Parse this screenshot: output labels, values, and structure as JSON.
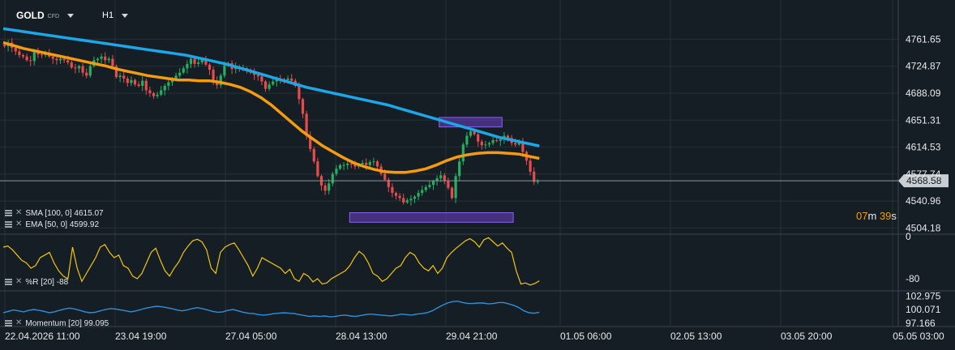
{
  "header": {
    "symbol": "GOLD",
    "symbol_sub": "CFD",
    "timeframe": "H1"
  },
  "indicators": {
    "sma": {
      "label": "SMA [100, 0] 4615.07",
      "color": "#1ea7e8"
    },
    "ema": {
      "label": "EMA [50, 0] 4599.92",
      "color": "#f39c12"
    },
    "williams_r": {
      "label": "%R [20] -88",
      "color": "#f1c40f"
    },
    "momentum": {
      "label": "Momentum [20] 99.095",
      "color": "#2f8fd8"
    }
  },
  "price_tag": "4568.58",
  "countdown": {
    "min": "07",
    "min_unit": "m",
    "sec": "39",
    "sec_unit": "s"
  },
  "chart_data": [
    {
      "type": "candlestick",
      "y_ticks": [
        "4761.65",
        "4724.87",
        "4688.09",
        "4651.31",
        "4614.53",
        "4577.74",
        "4540.96",
        "4504.18"
      ],
      "ylim": [
        4498,
        4782
      ],
      "x_ticks": [
        "22.04.2026 11:00",
        "23.04 19:00",
        "27.04 05:00",
        "28.04 13:00",
        "29.04 21:00",
        "01.05 06:00",
        "02.05 13:00",
        "03.05 20:00",
        "05.05 03:00"
      ],
      "last_price": 4568.58,
      "bar_count": 144,
      "closes": [
        4752,
        4757,
        4750,
        4745,
        4740,
        4738,
        4733,
        4732,
        4745,
        4741,
        4740,
        4742,
        4738,
        4735,
        4733,
        4735,
        4733,
        4730,
        4723,
        4722,
        4725,
        4716,
        4712,
        4725,
        4733,
        4735,
        4738,
        4733,
        4735,
        4725,
        4710,
        4712,
        4708,
        4702,
        4706,
        4700,
        4698,
        4705,
        4692,
        4688,
        4684,
        4686,
        4692,
        4698,
        4703,
        4708,
        4712,
        4716,
        4722,
        4728,
        4735,
        4728,
        4730,
        4734,
        4727,
        4720,
        4705,
        4699,
        4712,
        4726,
        4729,
        4721,
        4724,
        4722,
        4722,
        4718,
        4716,
        4713,
        4711,
        4704,
        4694,
        4700,
        4704,
        4708,
        4707,
        4706,
        4708,
        4705,
        4698,
        4680,
        4660,
        4630,
        4612,
        4595,
        4575,
        4562,
        4555,
        4565,
        4578,
        4585,
        4590,
        4590,
        4592,
        4591,
        4588,
        4591,
        4593,
        4590,
        4594,
        4595,
        4588,
        4578,
        4570,
        4560,
        4552,
        4548,
        4545,
        4539,
        4542,
        4544,
        4547,
        4552,
        4556,
        4560,
        4563,
        4568,
        4572,
        4576,
        4568,
        4559,
        4545,
        4575,
        4595,
        4618,
        4630,
        4636,
        4632,
        4622,
        4617,
        4618,
        4620,
        4624,
        4623,
        4625,
        4630,
        4627,
        4620,
        4618,
        4622,
        4608,
        4596,
        4581,
        4567,
        4568
      ],
      "sma": [
        4776,
        4774,
        4772,
        4770,
        4768,
        4766,
        4764,
        4762,
        4760,
        4758,
        4756,
        4754,
        4752,
        4750,
        4748,
        4746,
        4744,
        4742,
        4740,
        4737,
        4734,
        4731,
        4728,
        4724,
        4720,
        4716,
        4712,
        4708,
        4704,
        4700,
        4696,
        4693,
        4690,
        4687,
        4684,
        4681,
        4678,
        4675,
        4672,
        4668,
        4664,
        4660,
        4656,
        4652,
        4648,
        4644,
        4640,
        4636,
        4632,
        4628,
        4625,
        4622,
        4619,
        4616
      ],
      "ema": [
        4757,
        4753,
        4749,
        4746,
        4743,
        4740,
        4737,
        4734,
        4731,
        4728,
        4725,
        4721,
        4718,
        4715,
        4712,
        4710,
        4708,
        4706,
        4706,
        4705,
        4705,
        4703,
        4700,
        4696,
        4690,
        4682,
        4672,
        4660,
        4648,
        4636,
        4626,
        4616,
        4608,
        4600,
        4593,
        4588,
        4584,
        4581,
        4580,
        4580,
        4582,
        4585,
        4590,
        4596,
        4601,
        4604,
        4606,
        4607,
        4607,
        4606,
        4605,
        4602,
        4599
      ],
      "highlight_boxes": [
        {
          "from_bar": 117,
          "to_bar": 133,
          "y_top": 4655,
          "y_bottom": 4642,
          "color": "#6c3fc7"
        },
        {
          "from_bar": 93,
          "to_bar": 136,
          "y_top": 4525,
          "y_bottom": 4512,
          "color": "#6c3fc7"
        }
      ]
    },
    {
      "type": "line",
      "name": "%R [20]",
      "y_ticks": [
        "0",
        "-80"
      ],
      "ylim": [
        -100,
        0
      ],
      "values": [
        -20,
        -18,
        -25,
        -35,
        -45,
        -50,
        -60,
        -55,
        -40,
        -35,
        -30,
        -50,
        -65,
        -75,
        -80,
        -20,
        -60,
        -85,
        -70,
        -55,
        -40,
        -20,
        -15,
        -30,
        -40,
        -35,
        -55,
        -60,
        -75,
        -80,
        -70,
        -50,
        -30,
        -22,
        -45,
        -65,
        -75,
        -60,
        -48,
        -30,
        -18,
        -8,
        -5,
        -10,
        -25,
        -60,
        -70,
        -30,
        -20,
        -15,
        -12,
        -25,
        -40,
        -55,
        -75,
        -60,
        -40,
        -45,
        -50,
        -55,
        -60,
        -70,
        -62,
        -80,
        -85,
        -70,
        -75,
        -86,
        -80,
        -90,
        -88,
        -80,
        -75,
        -70,
        -65,
        -55,
        -40,
        -28,
        -35,
        -50,
        -70,
        -75,
        -85,
        -80,
        -70,
        -60,
        -55,
        -40,
        -30,
        -35,
        -50,
        -60,
        -65,
        -55,
        -70,
        -60,
        -40,
        -30,
        -22,
        -15,
        -8,
        -4,
        -10,
        -20,
        -6,
        -2,
        -10,
        -18,
        -12,
        -22,
        -30,
        -65,
        -90,
        -88,
        -92,
        -89,
        -84
      ]
    },
    {
      "type": "line",
      "name": "Momentum [20]",
      "y_ticks": [
        "102.975",
        "100.071",
        "97.166"
      ],
      "ylim": [
        96.6,
        103.6
      ],
      "values": [
        99.4,
        99.7,
        100.0,
        99.8,
        99.6,
        99.9,
        100.1,
        99.9,
        99.7,
        99.4,
        99.6,
        99.9,
        100.2,
        100.4,
        100.2,
        99.9,
        99.6,
        99.4,
        99.5,
        99.8,
        100.1,
        100.3,
        100.2,
        100.0,
        99.8,
        99.6,
        99.8,
        100.1,
        100.4,
        100.6,
        100.8,
        100.7,
        100.5,
        100.3,
        100.0,
        99.8,
        100.0,
        100.3,
        100.5,
        100.3,
        100.0,
        99.7,
        99.5,
        99.6,
        99.9,
        100.1,
        99.8,
        99.5,
        99.3,
        99.2,
        99.0,
        98.9,
        99.0,
        99.2,
        99.3,
        99.4,
        99.3,
        99.2,
        99.0,
        98.8,
        98.6,
        98.7,
        98.6,
        98.7,
        98.5,
        98.6,
        98.8,
        98.9,
        98.7,
        98.6,
        98.8,
        99.0,
        99.1,
        99.0,
        98.9,
        98.8,
        98.7,
        98.9,
        99.1,
        99.0,
        98.9,
        99.1,
        99.2,
        99.4,
        99.8,
        100.4,
        101.0,
        101.5,
        101.8,
        101.9,
        101.6,
        101.4,
        101.4,
        101.5,
        101.5,
        101.3,
        101.4,
        101.6,
        101.6,
        101.3,
        101.0,
        100.5,
        99.8,
        99.4,
        99.3,
        99.5
      ]
    }
  ]
}
